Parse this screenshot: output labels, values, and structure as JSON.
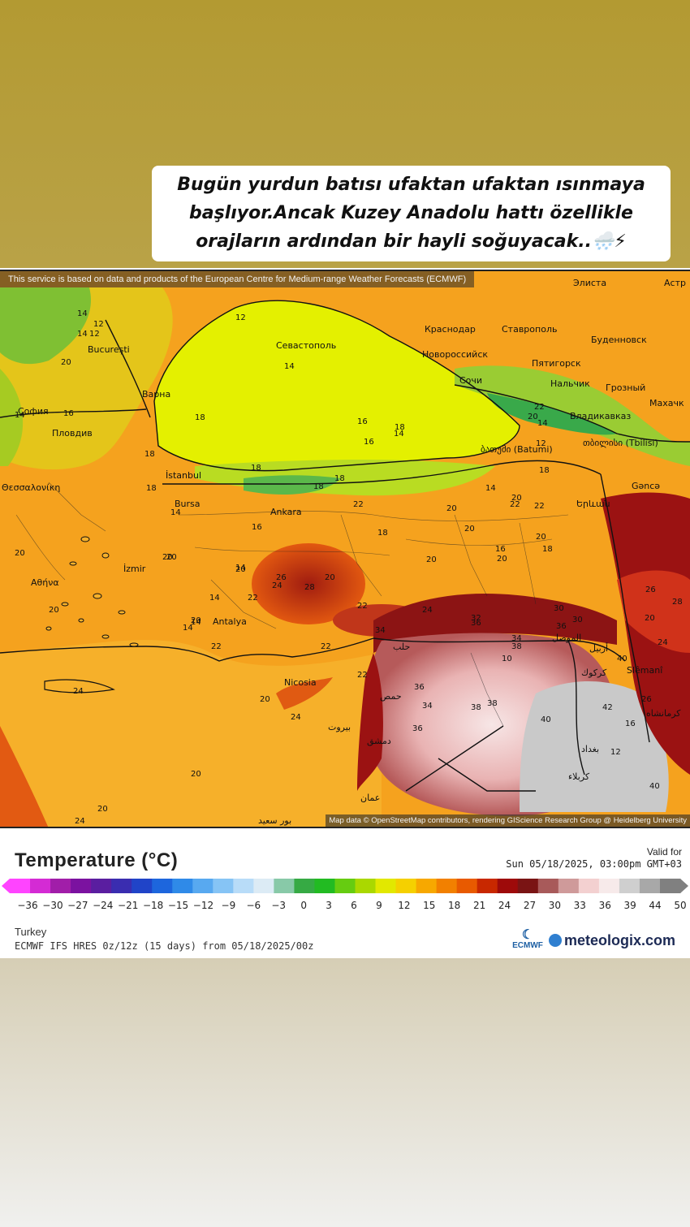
{
  "caption": {
    "text": "Bugün yurdun batısı ufaktan ufaktan ısınmaya başlıyor.Ancak Kuzey Anadolu hattı özellikle orajların ardından bir hayli soğuyacak..🌨️⚡"
  },
  "map": {
    "attribution_top": "This service is based on data and products of the European Centre for Medium-range Weather Forecasts (ECMWF)",
    "attribution_bottom": "Map data © OpenStreetMap contributors, rendering GIScience Research Group @ Heidelberg University",
    "cities": [
      {
        "name": "București"
      },
      {
        "name": "Варна"
      },
      {
        "name": "София"
      },
      {
        "name": "Пловдив"
      },
      {
        "name": "Θεσσαλονίκη"
      },
      {
        "name": "İstanbul"
      },
      {
        "name": "Bursa"
      },
      {
        "name": "Ankara"
      },
      {
        "name": "İzmir"
      },
      {
        "name": "Αθήνα"
      },
      {
        "name": "Antalya"
      },
      {
        "name": "Nicosia"
      },
      {
        "name": "Севастополь"
      },
      {
        "name": "Краснодар"
      },
      {
        "name": "Ставрополь"
      },
      {
        "name": "Новороссийск"
      },
      {
        "name": "Буденновск"
      },
      {
        "name": "Пятигорск"
      },
      {
        "name": "Нальчик"
      },
      {
        "name": "Сочи"
      },
      {
        "name": "Грозный"
      },
      {
        "name": "Владикавказ"
      },
      {
        "name": "Махачк"
      },
      {
        "name": "ბათუმი (Batumi)"
      },
      {
        "name": "თბილისი (Tbilisi)"
      },
      {
        "name": "Gəncə"
      },
      {
        "name": "Երևան"
      },
      {
        "name": "Slêmanî"
      },
      {
        "name": "Элиста"
      },
      {
        "name": "Астр"
      },
      {
        "name": "حلب"
      },
      {
        "name": "حمص"
      },
      {
        "name": "بيروت"
      },
      {
        "name": "دمشق"
      },
      {
        "name": "عمان"
      },
      {
        "name": "أربيل"
      },
      {
        "name": "كركوك"
      },
      {
        "name": "الموصل"
      },
      {
        "name": "بغداد"
      },
      {
        "name": "كرمانشاه"
      },
      {
        "name": "كربلاء"
      },
      {
        "name": "بور سعيد"
      }
    ],
    "temperatures": [
      "14",
      "12",
      "14",
      "12",
      "20",
      "16",
      "14",
      "18",
      "18",
      "14",
      "16",
      "20",
      "20",
      "22",
      "14",
      "14",
      "14",
      "14",
      "12",
      "14",
      "18",
      "16",
      "14",
      "18",
      "18",
      "18",
      "20",
      "22",
      "20",
      "18",
      "20",
      "20",
      "22",
      "26",
      "28",
      "24",
      "22",
      "20",
      "22",
      "24",
      "34",
      "36",
      "36",
      "38",
      "38",
      "36",
      "40",
      "42",
      "40",
      "36",
      "34",
      "38",
      "22",
      "20",
      "20",
      "20",
      "20",
      "22",
      "24",
      "20",
      "20",
      "24",
      "20",
      "24",
      "30",
      "30",
      "32",
      "34",
      "26",
      "18",
      "16",
      "14",
      "20",
      "22",
      "20",
      "18",
      "16",
      "18",
      "20",
      "22",
      "14",
      "12",
      "10",
      "12",
      "16",
      "20",
      "24",
      "26",
      "28",
      "40"
    ]
  },
  "legend": {
    "title": "Temperature (°C)",
    "valid_label": "Valid for",
    "valid_date": "Sun 05/18/2025, 03:00pm GMT+03",
    "ticks": [
      "-36",
      "-30",
      "-27",
      "-24",
      "-21",
      "-18",
      "-15",
      "-12",
      "-9",
      "-6",
      "-3",
      "0",
      "3",
      "6",
      "9",
      "12",
      "15",
      "18",
      "21",
      "24",
      "27",
      "30",
      "33",
      "36",
      "39",
      "44",
      "50"
    ],
    "colors": [
      "#ff44ff",
      "#d42bd4",
      "#a11ea9",
      "#7b12a0",
      "#5a1ea0",
      "#3a2db0",
      "#2044c8",
      "#1d66dd",
      "#2f8ae8",
      "#58a9f0",
      "#86c4f5",
      "#b8dcf8",
      "#dcebf5",
      "#88c9a8",
      "#36aa44",
      "#22bb22",
      "#66cc11",
      "#aad800",
      "#e2e800",
      "#f5d000",
      "#f7a800",
      "#f28000",
      "#e85a00",
      "#c82800",
      "#9e0a0a",
      "#7a1414",
      "#a85a5a",
      "#cf9a9a",
      "#f3d0d0",
      "#f7eaea",
      "#cfcfcf",
      "#a8a8a8",
      "#808080"
    ],
    "region": "Turkey",
    "model": "ECMWF IFS HRES 0z/12z (15 days) from 05/18/2025/00z",
    "ecmwf_logo": "ECMWF",
    "brand": "meteologix.com"
  }
}
